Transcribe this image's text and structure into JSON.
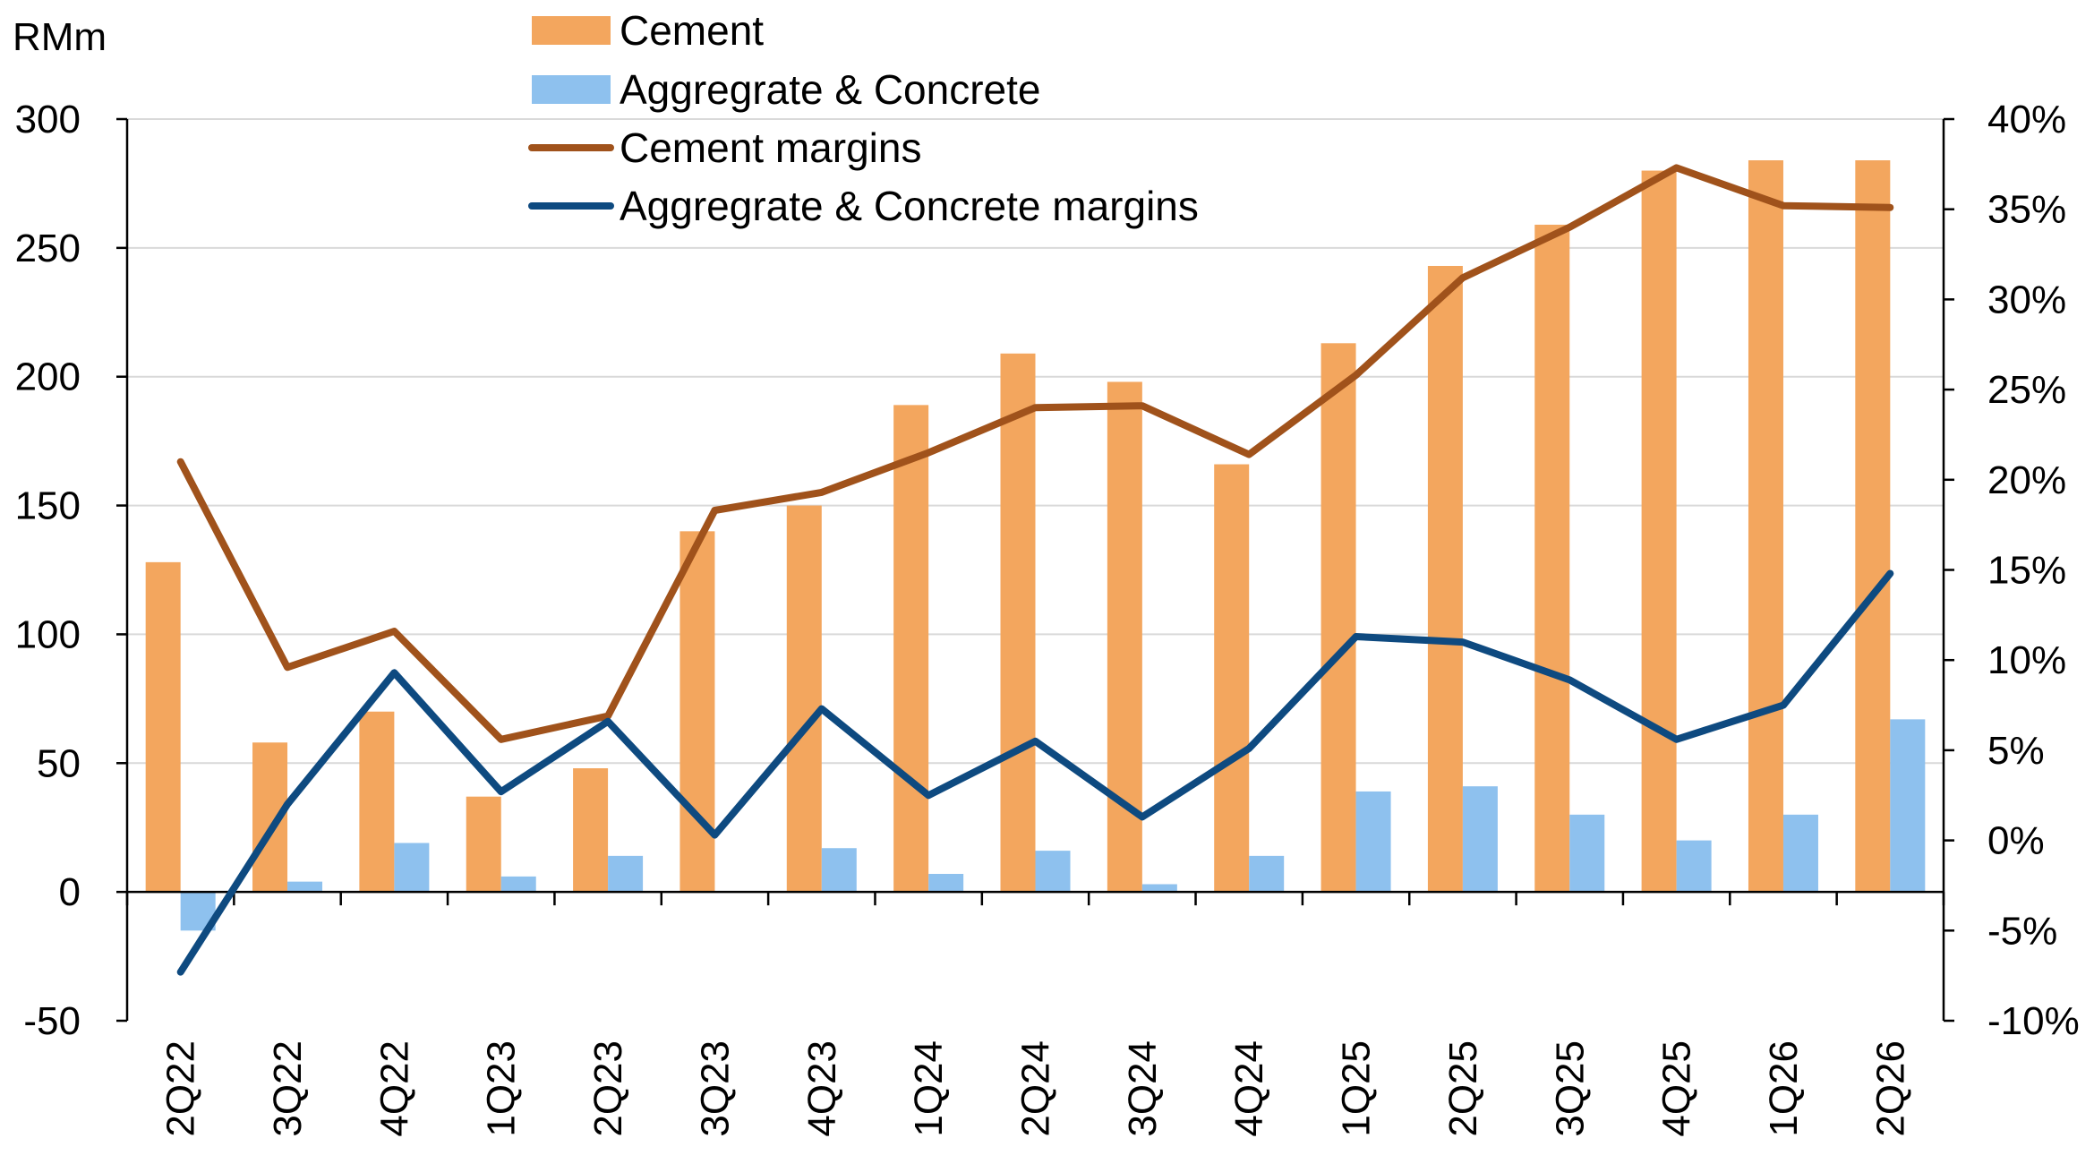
{
  "chart_data": {
    "type": "bar+line",
    "left_axis_unit": "RMm",
    "categories": [
      "2Q22",
      "3Q22",
      "4Q22",
      "1Q23",
      "2Q23",
      "3Q23",
      "4Q23",
      "1Q24",
      "2Q24",
      "3Q24",
      "4Q24",
      "1Q25",
      "2Q25",
      "3Q25",
      "4Q25",
      "1Q26",
      "2Q26"
    ],
    "left_axis": {
      "min": -50,
      "max": 300,
      "ticks": [
        -50,
        0,
        50,
        100,
        150,
        200,
        250,
        300
      ]
    },
    "right_axis": {
      "min": -10,
      "max": 40,
      "ticks": [
        -10,
        -5,
        0,
        5,
        10,
        15,
        20,
        25,
        30,
        35,
        40
      ],
      "tick_labels": [
        "-10%",
        "-5%",
        "0%",
        "5%",
        "10%",
        "15%",
        "20%",
        "25%",
        "30%",
        "35%",
        "40%"
      ]
    },
    "bar_series": [
      {
        "name": "Cement",
        "color": "#F3A65E",
        "axis": "left",
        "values": [
          128,
          58,
          70,
          37,
          48,
          140,
          150,
          189,
          209,
          198,
          166,
          213,
          243,
          259,
          280,
          284,
          284
        ]
      },
      {
        "name": "Aggregrate & Concrete",
        "color": "#8EC1EE",
        "axis": "left",
        "values": [
          -15,
          4,
          19,
          6,
          14,
          0,
          17,
          7,
          16,
          3,
          14,
          39,
          41,
          30,
          20,
          30,
          67
        ]
      }
    ],
    "line_series": [
      {
        "name": "Cement margins",
        "color": "#A0521B",
        "axis": "right",
        "values": [
          21.0,
          9.6,
          11.6,
          5.6,
          6.9,
          18.3,
          19.3,
          21.5,
          24.0,
          24.1,
          21.4,
          25.8,
          31.2,
          34.0,
          37.3,
          35.2,
          35.1
        ]
      },
      {
        "name": "Aggregrate & Concrete margins",
        "color": "#0E4A80",
        "axis": "right",
        "values": [
          -7.3,
          2.0,
          9.3,
          2.7,
          6.6,
          0.3,
          7.3,
          2.5,
          5.5,
          1.3,
          5.1,
          11.3,
          11.0,
          8.9,
          5.6,
          7.5,
          14.8
        ]
      }
    ],
    "legend": [
      "Cement",
      "Aggregrate & Concrete",
      "Cement margins",
      "Aggregrate & Concrete margins"
    ],
    "legend_position": "top-center",
    "grid": "horizontal"
  }
}
